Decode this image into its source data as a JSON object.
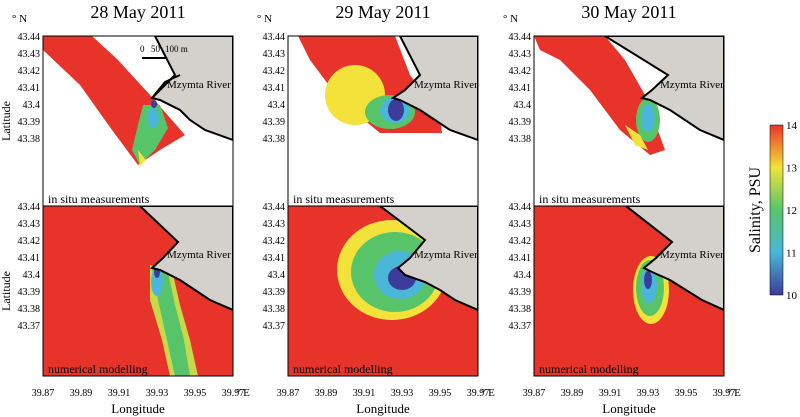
{
  "figure": {
    "columns": [
      {
        "date": "28 May 2011"
      },
      {
        "date": "29 May 2011"
      },
      {
        "date": "30 May 2011"
      }
    ],
    "rows": [
      {
        "label": "in situ measurements"
      },
      {
        "label": "numerical modelling"
      }
    ],
    "axes": {
      "x_label": "Longitude",
      "y_label": "Latitude",
      "x_unit": "° E",
      "y_unit": "° N",
      "x_ticks": [
        "39.87",
        "39.89",
        "39.91",
        "39.93",
        "39.95",
        "39.97"
      ],
      "y_ticks_top": [
        "43.44",
        "43.43",
        "43.42",
        "43.41",
        "43.4",
        "43.39",
        "43.38"
      ],
      "y_ticks_bottom": [
        "43.44",
        "43.43",
        "43.42",
        "43.41",
        "43.4",
        "43.39",
        "43.38",
        "43.37"
      ]
    },
    "river_label": "Mzymta River",
    "scale_bar": {
      "ticks": [
        "0",
        "50",
        "100 m"
      ]
    },
    "colorbar": {
      "title": "Salinity, PSU",
      "ticks": [
        "14",
        "13",
        "12",
        "11",
        "10"
      ],
      "range": [
        10,
        14
      ],
      "colors": [
        "#3c3c9a",
        "#4ab7d8",
        "#58c46a",
        "#f2e23a",
        "#e8332a"
      ]
    }
  }
}
